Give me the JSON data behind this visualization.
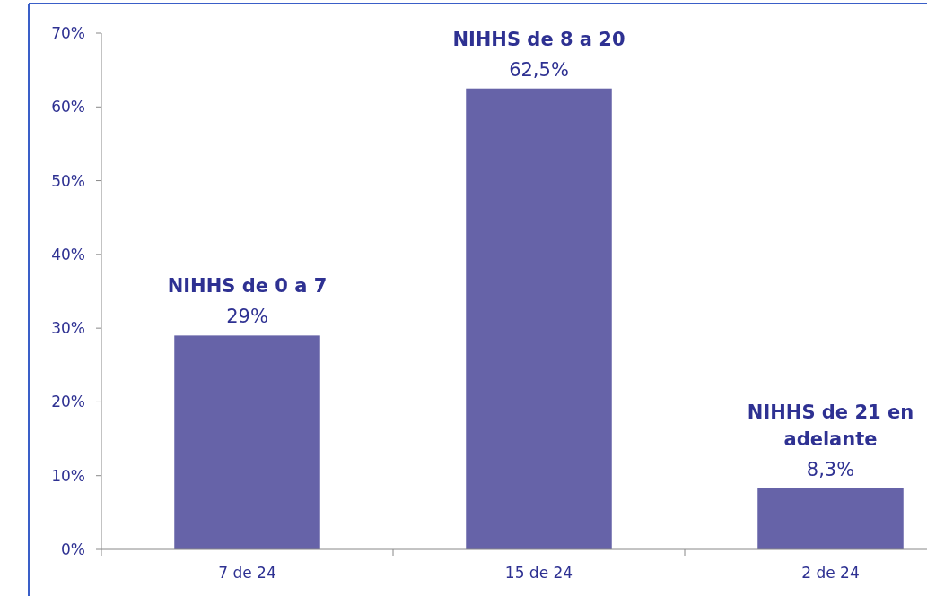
{
  "chart_data": {
    "type": "bar",
    "categories": [
      "7 de 24",
      "15 de 24",
      "2 de 24"
    ],
    "values": [
      29,
      62.5,
      8.3
    ],
    "color": "#6663a8",
    "value_labels": [
      "29%",
      "62,5%",
      "8,3%"
    ],
    "ylim": [
      0,
      70
    ],
    "yticks": [
      {
        "value": 0,
        "label": "0%"
      },
      {
        "value": 10,
        "label": "10%"
      },
      {
        "value": 20,
        "label": "20%"
      },
      {
        "value": 30,
        "label": "30%"
      },
      {
        "value": 40,
        "label": "40%"
      },
      {
        "value": 50,
        "label": "50%"
      },
      {
        "value": 60,
        "label": "60%"
      },
      {
        "value": 70,
        "label": "70%"
      }
    ],
    "annotations": [
      {
        "text": "NIHHS de 0 a 7",
        "x": "7 de 24",
        "y": 29
      },
      {
        "text": "NIHHS de 8 a 20",
        "x": "15 de 24",
        "y": 62.5
      },
      {
        "text": "NIHHS de 21 en adelante",
        "x": "2 de 24",
        "y": 8.3
      }
    ],
    "grid": false
  }
}
